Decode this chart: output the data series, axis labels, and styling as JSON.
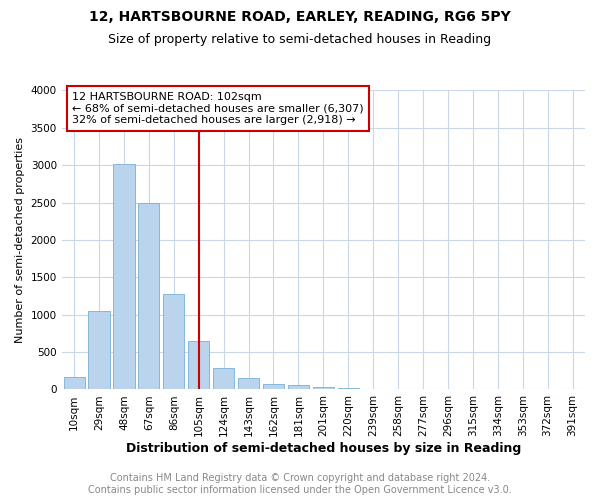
{
  "title": "12, HARTSBOURNE ROAD, EARLEY, READING, RG6 5PY",
  "subtitle": "Size of property relative to semi-detached houses in Reading",
  "xlabel": "Distribution of semi-detached houses by size in Reading",
  "ylabel": "Number of semi-detached properties",
  "footnote1": "Contains HM Land Registry data © Crown copyright and database right 2024.",
  "footnote2": "Contains public sector information licensed under the Open Government Licence v3.0.",
  "annotation_line1": "12 HARTSBOURNE ROAD: 102sqm",
  "annotation_line2": "← 68% of semi-detached houses are smaller (6,307)",
  "annotation_line3": "32% of semi-detached houses are larger (2,918) →",
  "categories": [
    "10sqm",
    "29sqm",
    "48sqm",
    "67sqm",
    "86sqm",
    "105sqm",
    "124sqm",
    "143sqm",
    "162sqm",
    "181sqm",
    "201sqm",
    "220sqm",
    "239sqm",
    "258sqm",
    "277sqm",
    "296sqm",
    "315sqm",
    "334sqm",
    "353sqm",
    "372sqm",
    "391sqm"
  ],
  "values": [
    170,
    1050,
    3020,
    2490,
    1280,
    650,
    290,
    160,
    70,
    55,
    35,
    15,
    10,
    5,
    3,
    2,
    2,
    1,
    1,
    1,
    1
  ],
  "bar_color": "#bad4ed",
  "bar_edge_color": "#7bafd4",
  "property_line_color": "#cc0000",
  "annotation_box_edge_color": "#cc0000",
  "background_color": "#ffffff",
  "grid_color": "#c8d8e8",
  "ylim": [
    0,
    4000
  ],
  "yticks": [
    0,
    500,
    1000,
    1500,
    2000,
    2500,
    3000,
    3500,
    4000
  ],
  "property_line_x": 5,
  "title_fontsize": 10,
  "subtitle_fontsize": 9,
  "ylabel_fontsize": 8,
  "xlabel_fontsize": 9,
  "tick_fontsize": 7.5,
  "footnote_fontsize": 7,
  "annotation_fontsize": 8
}
